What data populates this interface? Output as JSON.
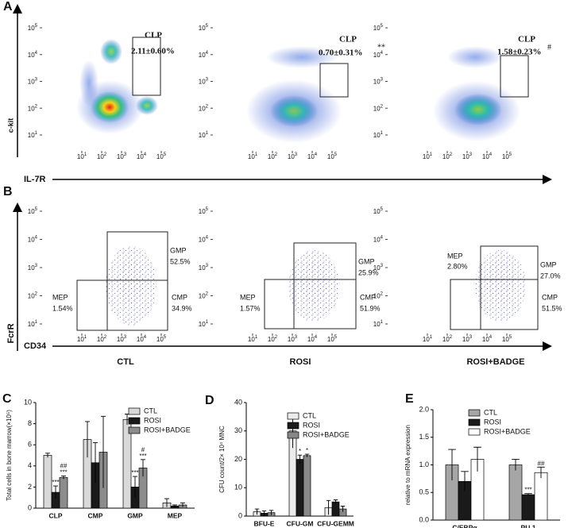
{
  "flow": {
    "panel_a": "A",
    "panel_b": "B",
    "a_axes": {
      "y": "c-kit",
      "x": "IL-7R"
    },
    "b_axes": {
      "y": "FcrR",
      "x": "CD34"
    },
    "tick_base": "10",
    "tick_exponents": [
      "1",
      "2",
      "3",
      "4",
      "5"
    ],
    "a_plots": [
      {
        "gate": "CLP",
        "value": "2.11±0.60%"
      },
      {
        "gate": "CLP",
        "value": "0.70±0.31%",
        "sig": "**"
      },
      {
        "gate": "CLP",
        "value": "1.58±0.23%",
        "sig": "#"
      }
    ],
    "b_plots": [
      {
        "gmp": "GMP",
        "gmp_value": "52.5%",
        "mep": "MEP",
        "mep_value": "1.54%",
        "cmp": "CMP",
        "cmp_value": "34.9%"
      },
      {
        "gmp": "GMP",
        "gmp_value": "25.9%",
        "mep": "MEP",
        "mep_value": "1.57%",
        "cmp": "CMP",
        "cmp_value": "51.9%"
      },
      {
        "gmp": "GMP",
        "gmp_value": "27.0%",
        "mep": "MEP",
        "mep_value": "2.80%",
        "cmp": "CMP",
        "cmp_value": "51.5%"
      }
    ],
    "groups": [
      "CTL",
      "ROSI",
      "ROSI+BADGE"
    ]
  },
  "chart_data": [
    {
      "type": "bar",
      "panel": "C",
      "ylabel": "Total cells in bone marrow(×10⁵)",
      "categories": [
        "CLP",
        "CMP",
        "GMP",
        "MEP"
      ],
      "series": [
        {
          "name": "CTL",
          "color": "#d9d9d9",
          "values": [
            5.0,
            6.5,
            8.4,
            0.5
          ],
          "errors": [
            0.2,
            1.7,
            0.5,
            0.4
          ],
          "sig": [
            null,
            null,
            null,
            null
          ]
        },
        {
          "name": "ROSI",
          "color": "#1a1a1a",
          "values": [
            1.5,
            4.3,
            2.0,
            0.2
          ],
          "errors": [
            0.6,
            1.9,
            1.0,
            0.1
          ],
          "sig": [
            [
              "***"
            ],
            null,
            [
              "***"
            ],
            null
          ]
        },
        {
          "name": "ROSI+BADGE",
          "color": "#8c8c8c",
          "values": [
            2.9,
            5.3,
            3.8,
            0.3
          ],
          "errors": [
            0.15,
            3.4,
            0.8,
            0.2
          ],
          "sig": [
            [
              "##",
              "***"
            ],
            null,
            [
              "#",
              "***"
            ],
            null
          ]
        }
      ],
      "ylim": [
        0,
        10
      ],
      "yticks": [
        0,
        2,
        4,
        6,
        8,
        10
      ]
    },
    {
      "type": "bar",
      "panel": "D",
      "ylabel": "CFU count/2× 10⁴ MNC",
      "categories": [
        "BFU-E",
        "CFU-GM",
        "CFU-GEMM"
      ],
      "series": [
        {
          "name": "CTL",
          "color": "#ececec",
          "values": [
            1.5,
            30,
            3
          ],
          "errors": [
            1,
            6,
            2.5
          ],
          "sig": [
            null,
            null,
            null
          ]
        },
        {
          "name": "ROSI",
          "color": "#1a1a1a",
          "values": [
            1.0,
            20,
            5
          ],
          "errors": [
            0.8,
            1.5,
            0.7
          ],
          "sig": [
            null,
            [
              "*"
            ],
            null
          ]
        },
        {
          "name": "ROSI+BADGE",
          "color": "#888888",
          "values": [
            1.2,
            21.3,
            2.5
          ],
          "errors": [
            0.8,
            0.5,
            1
          ],
          "sig": [
            null,
            [
              "*"
            ],
            null
          ]
        }
      ],
      "ylim": [
        0,
        40
      ],
      "yticks": [
        0,
        10,
        20,
        30,
        40
      ]
    },
    {
      "type": "bar",
      "panel": "E",
      "ylabel": "relative to mRNA expression",
      "categories": [
        "C/EBPα",
        "PU.1"
      ],
      "series": [
        {
          "name": "CTL",
          "color": "#a6a6a6",
          "values": [
            1.0,
            1.0
          ],
          "errors": [
            0.28,
            0.1
          ],
          "sig": [
            null,
            null
          ]
        },
        {
          "name": "ROSI",
          "color": "#1a1a1a",
          "values": [
            0.7,
            0.46
          ],
          "errors": [
            0.18,
            0.02
          ],
          "sig": [
            null,
            [
              "***"
            ]
          ]
        },
        {
          "name": "ROSI+BADGE",
          "color": "#ffffff",
          "values": [
            1.1,
            0.86
          ],
          "errors": [
            0.22,
            0.1
          ],
          "sig": [
            null,
            [
              "##"
            ]
          ]
        }
      ],
      "ylim": [
        0,
        2
      ],
      "yticks": [
        {
          "value": 0,
          "label": "0.0"
        },
        {
          "value": 0.5,
          "label": "0.5"
        },
        {
          "value": 1,
          "label": "1.0"
        },
        {
          "value": 1.5,
          "label": "1.5"
        },
        {
          "value": 2,
          "label": "2.0"
        }
      ]
    }
  ]
}
